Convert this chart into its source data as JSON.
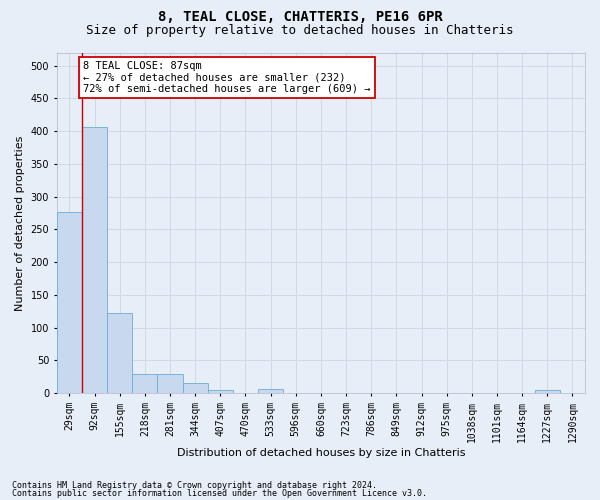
{
  "title": "8, TEAL CLOSE, CHATTERIS, PE16 6PR",
  "subtitle": "Size of property relative to detached houses in Chatteris",
  "xlabel": "Distribution of detached houses by size in Chatteris",
  "ylabel": "Number of detached properties",
  "bar_labels": [
    "29sqm",
    "92sqm",
    "155sqm",
    "218sqm",
    "281sqm",
    "344sqm",
    "407sqm",
    "470sqm",
    "533sqm",
    "596sqm",
    "660sqm",
    "723sqm",
    "786sqm",
    "849sqm",
    "912sqm",
    "975sqm",
    "1038sqm",
    "1101sqm",
    "1164sqm",
    "1227sqm",
    "1290sqm"
  ],
  "bar_values": [
    277,
    407,
    122,
    29,
    29,
    15,
    5,
    0,
    6,
    0,
    0,
    0,
    0,
    0,
    0,
    0,
    0,
    0,
    0,
    5,
    0
  ],
  "bar_color": "#c8d9ef",
  "bar_edge_color": "#6aaed6",
  "ylim": [
    0,
    520
  ],
  "yticks": [
    0,
    50,
    100,
    150,
    200,
    250,
    300,
    350,
    400,
    450,
    500
  ],
  "vline_x": 0.5,
  "vline_color": "#cc0000",
  "annotation_text": "8 TEAL CLOSE: 87sqm\n← 27% of detached houses are smaller (232)\n72% of semi-detached houses are larger (609) →",
  "annotation_box_facecolor": "#ffffff",
  "annotation_box_edgecolor": "#cc0000",
  "footnote1": "Contains HM Land Registry data © Crown copyright and database right 2024.",
  "footnote2": "Contains public sector information licensed under the Open Government Licence v3.0.",
  "bg_color": "#e8eef8",
  "grid_color": "#d0d8e8",
  "title_fontsize": 10,
  "subtitle_fontsize": 9,
  "axis_label_fontsize": 8,
  "tick_fontsize": 7,
  "annotation_fontsize": 7.5,
  "footnote_fontsize": 6
}
